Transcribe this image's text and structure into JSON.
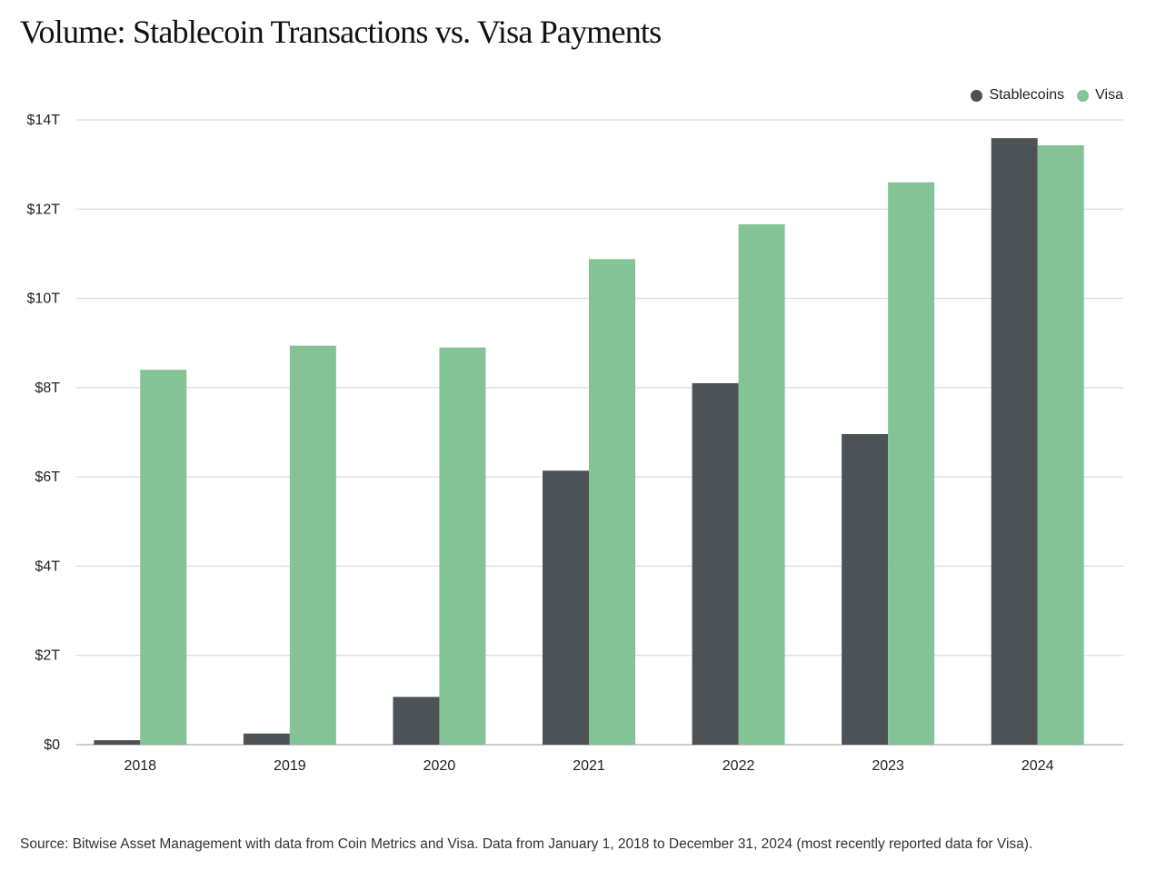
{
  "chart_data": {
    "type": "bar",
    "title": "Volume: Stablecoin Transactions vs. Visa Payments",
    "categories": [
      "2018",
      "2019",
      "2020",
      "2021",
      "2022",
      "2023",
      "2024"
    ],
    "series": [
      {
        "name": "Stablecoins",
        "color": "#4d5257",
        "values": [
          0.1,
          0.25,
          1.07,
          6.14,
          8.1,
          6.96,
          13.59
        ]
      },
      {
        "name": "Visa",
        "color": "#83c395",
        "values": [
          8.4,
          8.94,
          8.9,
          10.88,
          11.66,
          12.6,
          13.43
        ]
      }
    ],
    "y_ticks": [
      0,
      2,
      4,
      6,
      8,
      10,
      12,
      14
    ],
    "y_tick_labels": [
      "$0",
      "$2T",
      "$4T",
      "$6T",
      "$8T",
      "$10T",
      "$12T",
      "$14T"
    ],
    "ylim": [
      0,
      14
    ],
    "xlabel": "",
    "ylabel": "",
    "grid": true,
    "legend_position": "top-right"
  },
  "source": "Source: Bitwise Asset Management with data from Coin Metrics and Visa. Data from January 1, 2018 to December 31, 2024 (most recently reported data for Visa)."
}
